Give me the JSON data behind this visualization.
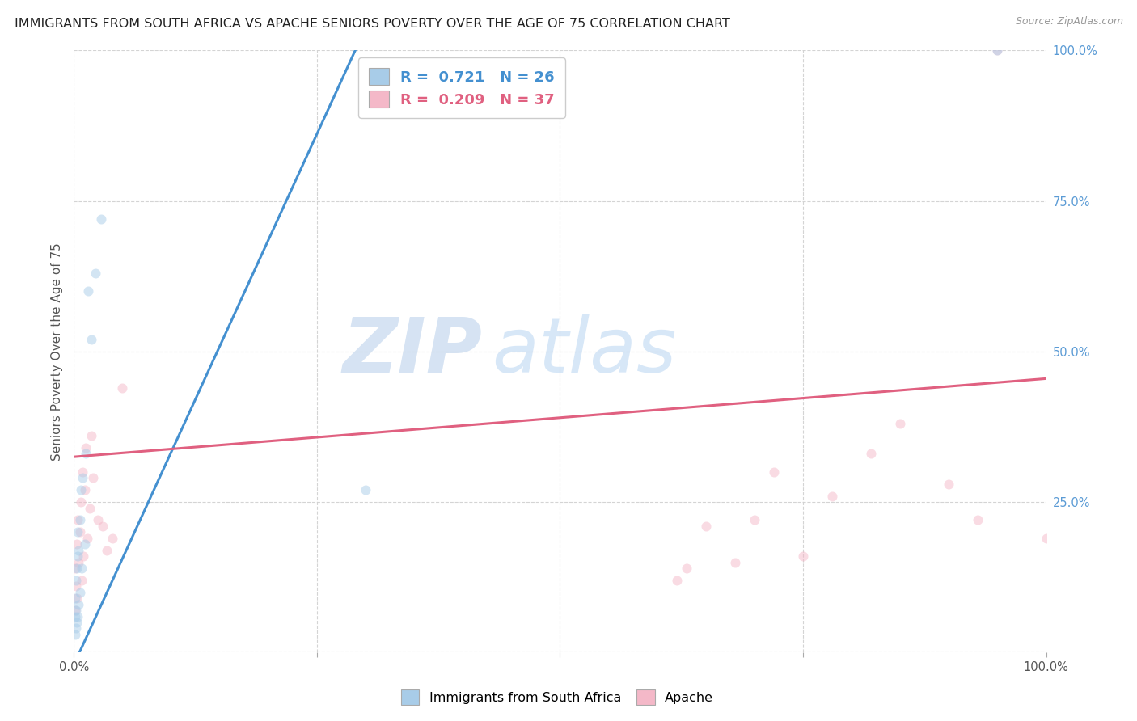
{
  "title": "IMMIGRANTS FROM SOUTH AFRICA VS APACHE SENIORS POVERTY OVER THE AGE OF 75 CORRELATION CHART",
  "source": "Source: ZipAtlas.com",
  "ylabel": "Seniors Poverty Over the Age of 75",
  "legend_label_blue": "Immigrants from South Africa",
  "legend_label_pink": "Apache",
  "R_blue": 0.721,
  "N_blue": 26,
  "R_pink": 0.209,
  "N_pink": 37,
  "color_blue": "#a8cce8",
  "color_pink": "#f4b8c8",
  "line_color_blue": "#4490d0",
  "line_color_pink": "#e06080",
  "watermark_zip": "ZIP",
  "watermark_atlas": "atlas",
  "xlim": [
    0,
    1
  ],
  "ylim": [
    0,
    1
  ],
  "blue_scatter_x": [
    0.001,
    0.001,
    0.001,
    0.002,
    0.002,
    0.002,
    0.003,
    0.003,
    0.004,
    0.004,
    0.004,
    0.005,
    0.005,
    0.006,
    0.006,
    0.007,
    0.008,
    0.009,
    0.011,
    0.012,
    0.015,
    0.018,
    0.022,
    0.028,
    0.3,
    0.95
  ],
  "blue_scatter_y": [
    0.03,
    0.06,
    0.09,
    0.04,
    0.07,
    0.12,
    0.05,
    0.14,
    0.06,
    0.16,
    0.2,
    0.08,
    0.17,
    0.1,
    0.22,
    0.27,
    0.14,
    0.29,
    0.18,
    0.33,
    0.6,
    0.52,
    0.63,
    0.72,
    0.27,
    1.0
  ],
  "pink_scatter_x": [
    0.001,
    0.001,
    0.002,
    0.003,
    0.003,
    0.004,
    0.005,
    0.006,
    0.007,
    0.008,
    0.009,
    0.01,
    0.011,
    0.012,
    0.014,
    0.016,
    0.018,
    0.02,
    0.025,
    0.03,
    0.034,
    0.04,
    0.05,
    0.62,
    0.63,
    0.65,
    0.68,
    0.7,
    0.72,
    0.75,
    0.78,
    0.82,
    0.85,
    0.9,
    0.93,
    0.95,
    1.0
  ],
  "pink_scatter_y": [
    0.07,
    0.14,
    0.11,
    0.18,
    0.09,
    0.22,
    0.15,
    0.2,
    0.25,
    0.12,
    0.3,
    0.16,
    0.27,
    0.34,
    0.19,
    0.24,
    0.36,
    0.29,
    0.22,
    0.21,
    0.17,
    0.19,
    0.44,
    0.12,
    0.14,
    0.21,
    0.15,
    0.22,
    0.3,
    0.16,
    0.26,
    0.33,
    0.38,
    0.28,
    0.22,
    1.0,
    0.19
  ],
  "blue_line_x": [
    0.0,
    0.295
  ],
  "blue_line_y": [
    -0.02,
    1.02
  ],
  "pink_line_x": [
    0.0,
    1.0
  ],
  "pink_line_y": [
    0.325,
    0.455
  ],
  "background_color": "#ffffff",
  "grid_color": "#d0d0d0",
  "title_fontsize": 11.5,
  "axis_label_fontsize": 11,
  "tick_fontsize": 10.5,
  "scatter_size": 75,
  "scatter_alpha": 0.5,
  "scatter_linewidth": 1.0
}
